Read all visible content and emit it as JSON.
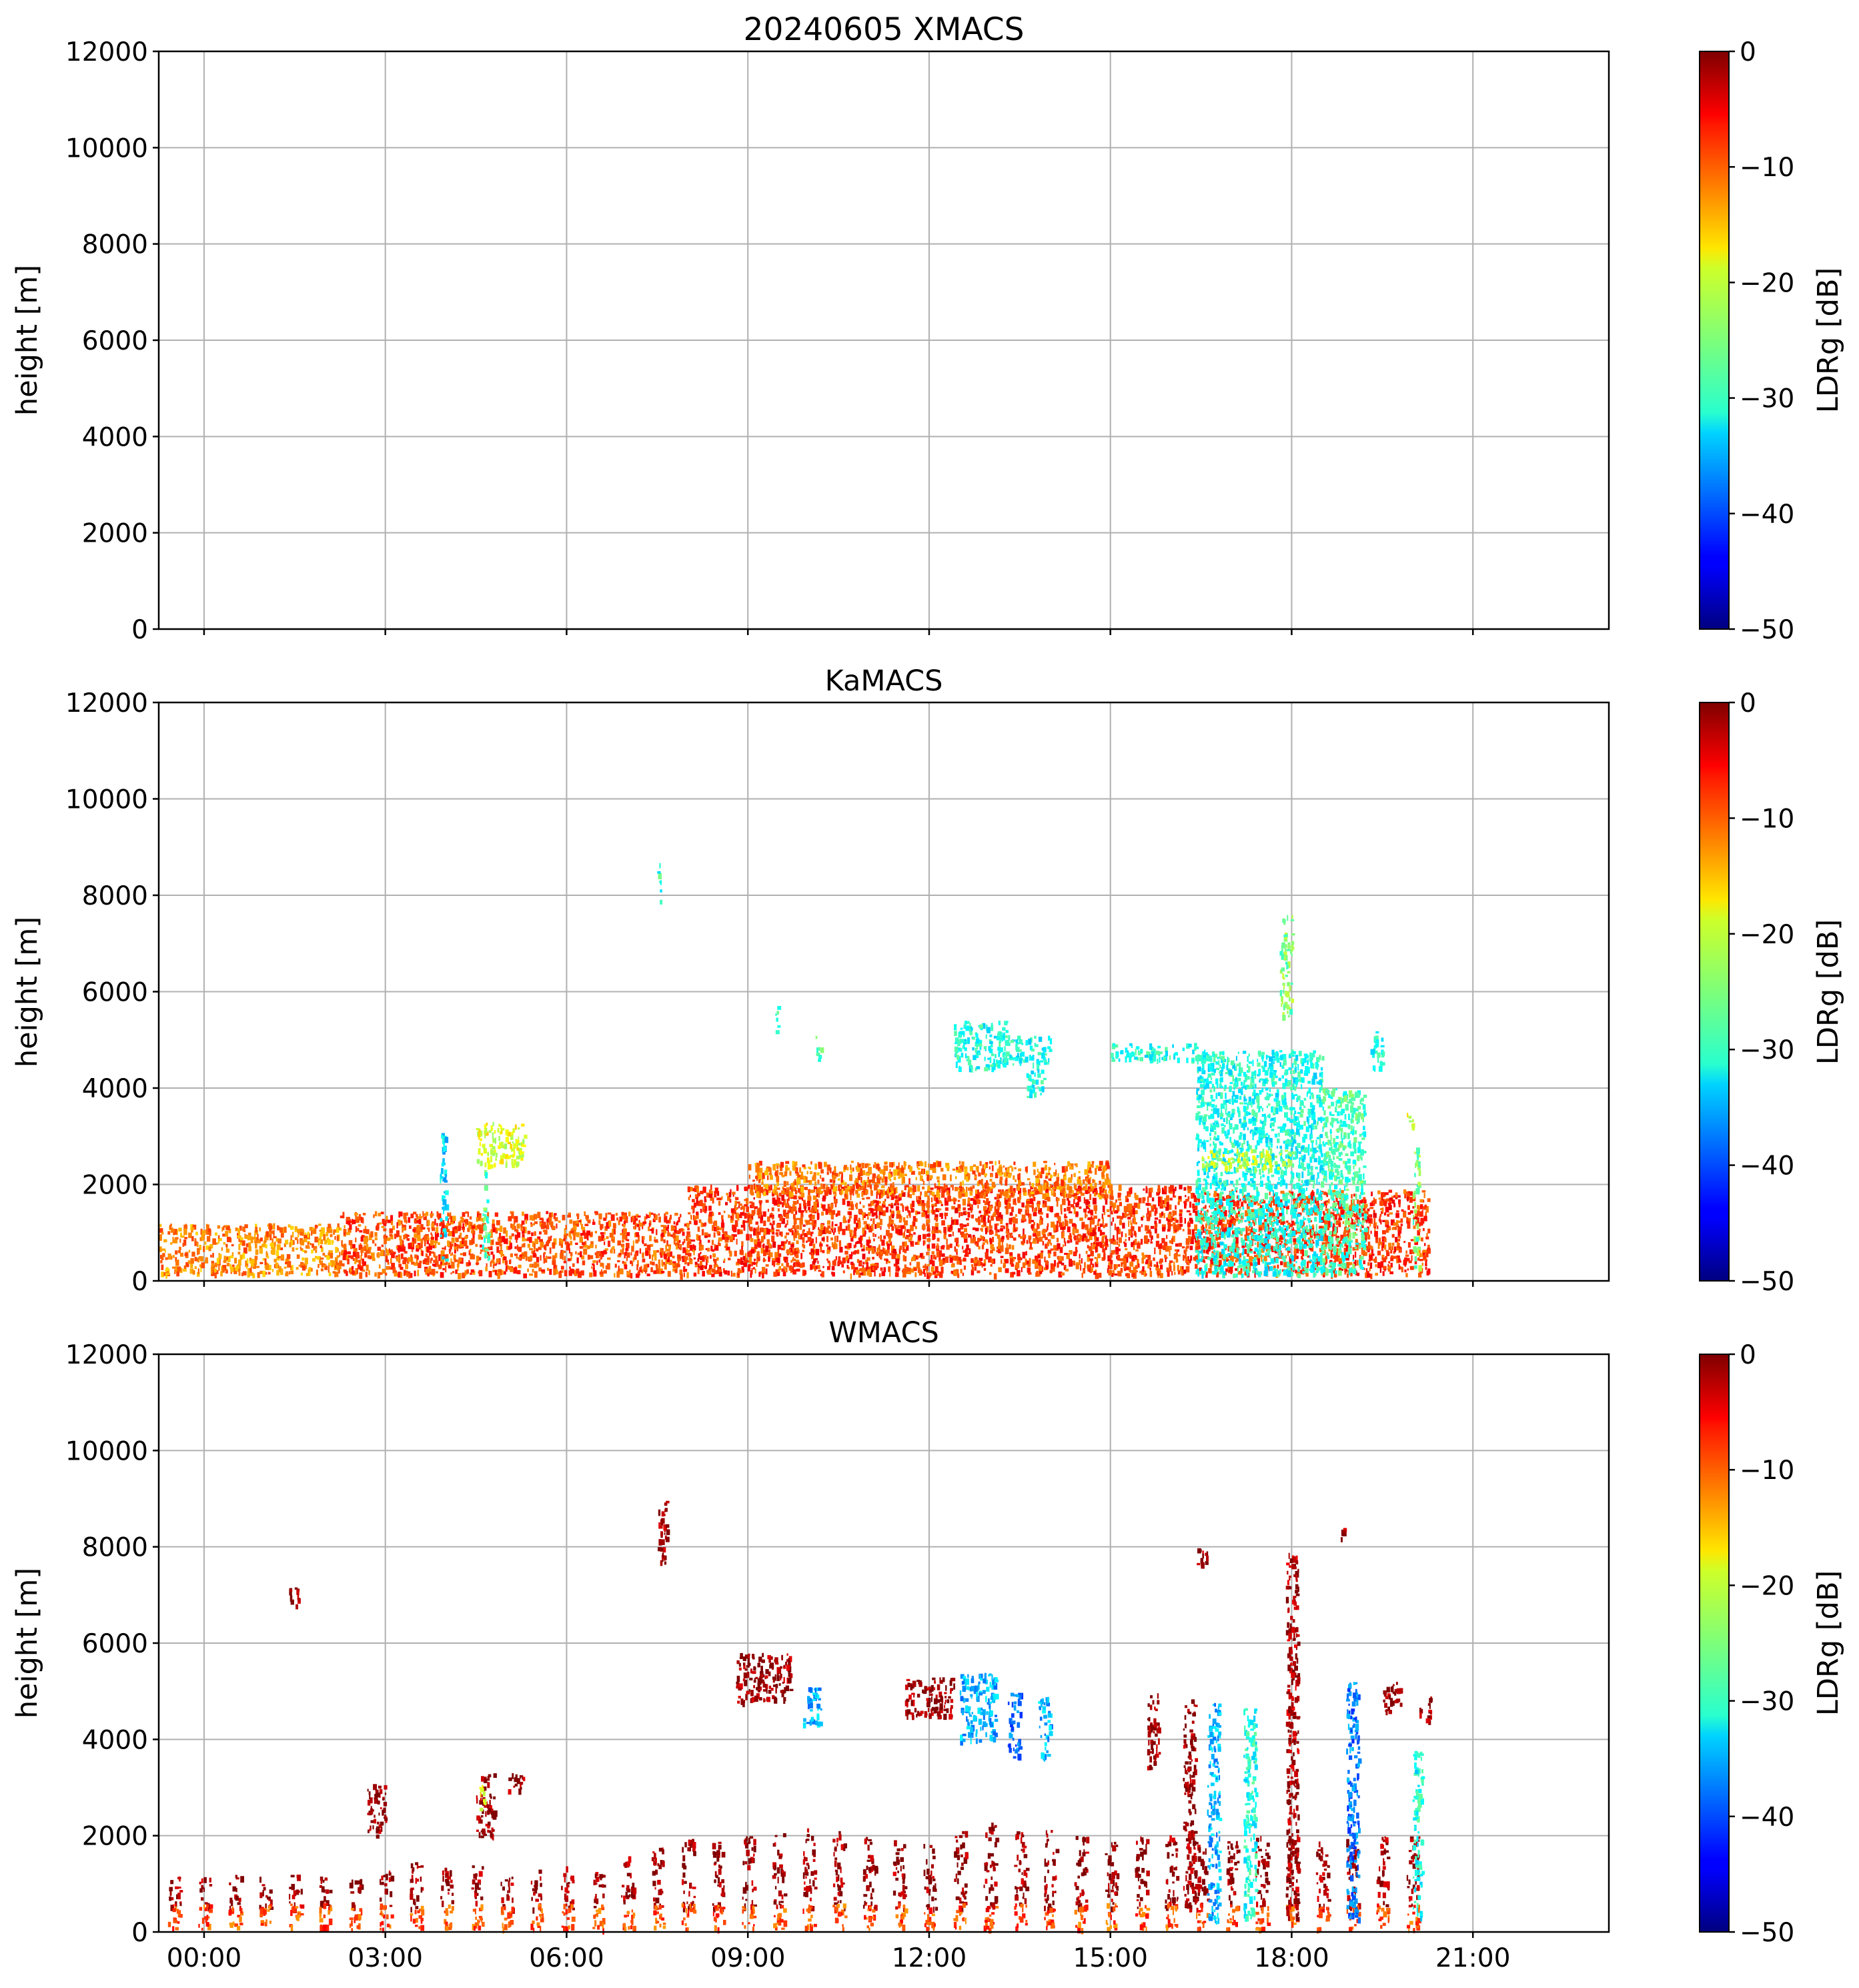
{
  "figure": {
    "title": "20240605 XMACS"
  },
  "colors": {
    "grid": "#b0b0b0",
    "axis": "#000000",
    "colormap": "jet"
  },
  "chart_data": [
    {
      "type": "heatmap",
      "title": "20240605 XMACS",
      "xlabel": "",
      "ylabel": "height [m]",
      "colorbar_label": "LDRg [dB]",
      "x_ticks": [
        "00:00",
        "03:00",
        "06:00",
        "09:00",
        "12:00",
        "15:00",
        "18:00",
        "21:00"
      ],
      "y_ticks": [
        "0",
        "2000",
        "4000",
        "6000",
        "8000",
        "10000",
        "12000"
      ],
      "colorbar_ticks": [
        "0",
        "−10",
        "−20",
        "−30",
        "−40",
        "−50"
      ],
      "xlim_hours": [
        -0.75,
        23.25
      ],
      "ylim": [
        0,
        12000
      ],
      "clim": [
        -50,
        0
      ],
      "grid": true,
      "regions": []
    },
    {
      "type": "heatmap",
      "title": "KaMACS",
      "xlabel": "",
      "ylabel": "height [m]",
      "colorbar_label": "LDRg [dB]",
      "x_ticks": [
        "00:00",
        "03:00",
        "06:00",
        "09:00",
        "12:00",
        "15:00",
        "18:00",
        "21:00"
      ],
      "y_ticks": [
        "0",
        "2000",
        "4000",
        "6000",
        "8000",
        "10000",
        "12000"
      ],
      "colorbar_ticks": [
        "0",
        "−10",
        "−20",
        "−30",
        "−40",
        "−50"
      ],
      "xlim_hours": [
        -0.75,
        23.25
      ],
      "ylim": [
        0,
        12000
      ],
      "clim": [
        -50,
        0
      ],
      "grid": true,
      "regions": [
        {
          "t0": -0.75,
          "t1": 2.25,
          "h0": 150,
          "h1": 1200,
          "ldr": -13
        },
        {
          "t0": 2.25,
          "t1": 8.0,
          "h0": 150,
          "h1": 1450,
          "ldr": -10
        },
        {
          "t0": 8.0,
          "t1": 16.5,
          "h0": 150,
          "h1": 2000,
          "ldr": -9
        },
        {
          "t0": 16.5,
          "t1": 20.25,
          "h0": 150,
          "h1": 1900,
          "ldr": -9
        },
        {
          "t0": 9.0,
          "t1": 15.0,
          "h0": 1800,
          "h1": 2500,
          "ldr": -12
        },
        {
          "t0": 3.9,
          "t1": 4.0,
          "h0": 400,
          "h1": 3100,
          "ldr": -33
        },
        {
          "t0": 4.5,
          "t1": 5.3,
          "h0": 2400,
          "h1": 3300,
          "ldr": -20
        },
        {
          "t0": 4.6,
          "t1": 4.7,
          "h0": 400,
          "h1": 2300,
          "ldr": -27
        },
        {
          "t0": 7.5,
          "t1": 7.55,
          "h0": 7900,
          "h1": 8800,
          "ldr": -29
        },
        {
          "t0": 9.45,
          "t1": 9.5,
          "h0": 5200,
          "h1": 5800,
          "ldr": -29
        },
        {
          "t0": 10.1,
          "t1": 10.2,
          "h0": 4600,
          "h1": 5100,
          "ldr": -27
        },
        {
          "t0": 12.4,
          "t1": 13.3,
          "h0": 4400,
          "h1": 5400,
          "ldr": -30
        },
        {
          "t0": 13.2,
          "t1": 14.0,
          "h0": 4500,
          "h1": 5100,
          "ldr": -30
        },
        {
          "t0": 13.6,
          "t1": 13.9,
          "h0": 3800,
          "h1": 4400,
          "ldr": -30
        },
        {
          "t0": 15.0,
          "t1": 16.4,
          "h0": 4600,
          "h1": 4950,
          "ldr": -30
        },
        {
          "t0": 16.4,
          "t1": 18.5,
          "h0": 150,
          "h1": 4800,
          "ldr": -30
        },
        {
          "t0": 16.5,
          "t1": 18.0,
          "h0": 2350,
          "h1": 2750,
          "ldr": -22
        },
        {
          "t0": 17.8,
          "t1": 18.0,
          "h0": 5500,
          "h1": 7600,
          "ldr": -25
        },
        {
          "t0": 18.5,
          "t1": 19.2,
          "h0": 200,
          "h1": 4000,
          "ldr": -28
        },
        {
          "t0": 19.3,
          "t1": 19.5,
          "h0": 4400,
          "h1": 5200,
          "ldr": -30
        },
        {
          "t0": 20.0,
          "t1": 20.1,
          "h0": 300,
          "h1": 2800,
          "ldr": -25
        },
        {
          "t0": 19.9,
          "t1": 20.0,
          "h0": 3000,
          "h1": 3500,
          "ldr": -20
        }
      ]
    },
    {
      "type": "heatmap",
      "title": "WMACS",
      "xlabel": "",
      "ylabel": "height [m]",
      "colorbar_label": "LDRg [dB]",
      "x_ticks": [
        "00:00",
        "03:00",
        "06:00",
        "09:00",
        "12:00",
        "15:00",
        "18:00",
        "21:00"
      ],
      "y_ticks": [
        "0",
        "2000",
        "4000",
        "6000",
        "8000",
        "10000",
        "12000"
      ],
      "colorbar_ticks": [
        "0",
        "−10",
        "−20",
        "−30",
        "−40",
        "−50"
      ],
      "xlim_hours": [
        -0.75,
        23.25
      ],
      "ylim": [
        0,
        12000
      ],
      "clim": [
        -50,
        0
      ],
      "grid": true,
      "columns_period_hours": 0.5,
      "columns_width_hours": 0.2,
      "columns_end_hours": 20.5,
      "column_heights": [
        1200,
        1150,
        1200,
        1150,
        1200,
        1250,
        1100,
        1300,
        1500,
        1350,
        1400,
        1200,
        1300,
        1400,
        1300,
        1600,
        1800,
        2000,
        1900,
        2000,
        2100,
        2200,
        2100,
        2000,
        2000,
        1900,
        2100,
        2300,
        2100,
        2200,
        2000,
        1900,
        2000,
        2100,
        1950,
        1900,
        2000,
        1900,
        2000,
        2000,
        2000,
        2000
      ],
      "regions": [
        {
          "t0": 1.4,
          "t1": 1.6,
          "h0": 6800,
          "h1": 7200,
          "ldr": -1
        },
        {
          "t0": 7.5,
          "t1": 7.65,
          "h0": 7600,
          "h1": 9000,
          "ldr": -1
        },
        {
          "t0": 8.8,
          "t1": 9.7,
          "h0": 4800,
          "h1": 5800,
          "ldr": -1
        },
        {
          "t0": 9.9,
          "t1": 10.2,
          "h0": 4300,
          "h1": 5100,
          "ldr": -35
        },
        {
          "t0": 11.6,
          "t1": 12.4,
          "h0": 4500,
          "h1": 5300,
          "ldr": -1
        },
        {
          "t0": 12.5,
          "t1": 13.1,
          "h0": 4000,
          "h1": 5400,
          "ldr": -35
        },
        {
          "t0": 13.3,
          "t1": 13.5,
          "h0": 3600,
          "h1": 5000,
          "ldr": -38
        },
        {
          "t0": 13.8,
          "t1": 14.0,
          "h0": 3600,
          "h1": 4900,
          "ldr": -35
        },
        {
          "t0": 15.6,
          "t1": 15.8,
          "h0": 3400,
          "h1": 5000,
          "ldr": -1
        },
        {
          "t0": 16.2,
          "t1": 16.4,
          "h0": 400,
          "h1": 4900,
          "ldr": -1
        },
        {
          "t0": 16.6,
          "t1": 16.8,
          "h0": 200,
          "h1": 4800,
          "ldr": -35
        },
        {
          "t0": 17.2,
          "t1": 17.4,
          "h0": 200,
          "h1": 4700,
          "ldr": -30
        },
        {
          "t0": 17.9,
          "t1": 18.1,
          "h0": 300,
          "h1": 7900,
          "ldr": -2
        },
        {
          "t0": 18.9,
          "t1": 19.1,
          "h0": 300,
          "h1": 5200,
          "ldr": -38
        },
        {
          "t0": 20.0,
          "t1": 20.15,
          "h0": 300,
          "h1": 3800,
          "ldr": -30
        },
        {
          "t0": 20.1,
          "t1": 20.3,
          "h0": 4400,
          "h1": 4900,
          "ldr": -1
        },
        {
          "t0": 2.7,
          "t1": 3.0,
          "h0": 2000,
          "h1": 3100,
          "ldr": -1
        },
        {
          "t0": 4.5,
          "t1": 4.8,
          "h0": 2000,
          "h1": 3300,
          "ldr": -1
        },
        {
          "t0": 4.55,
          "t1": 4.65,
          "h0": 2500,
          "h1": 3100,
          "ldr": -19
        },
        {
          "t0": 5.0,
          "t1": 5.3,
          "h0": 2900,
          "h1": 3300,
          "ldr": -1
        },
        {
          "t0": 16.4,
          "t1": 16.6,
          "h0": 7600,
          "h1": 8000,
          "ldr": -1
        },
        {
          "t0": 18.8,
          "t1": 18.9,
          "h0": 8200,
          "h1": 8400,
          "ldr": -1
        },
        {
          "t0": 19.5,
          "t1": 19.8,
          "h0": 4600,
          "h1": 5200,
          "ldr": -1
        }
      ]
    }
  ]
}
